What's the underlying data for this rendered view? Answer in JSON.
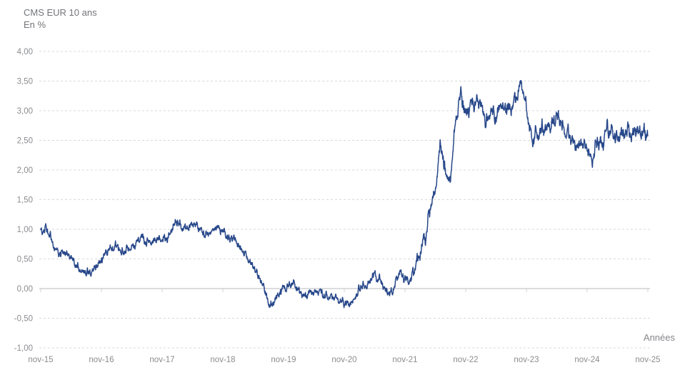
{
  "title": "CMS EUR 10 ans",
  "subtitle": "En %",
  "axis": {
    "x_label": "Années",
    "x_ticks": [
      "nov-15",
      "nov-16",
      "nov-17",
      "nov-18",
      "nov-19",
      "nov-20",
      "nov-21",
      "nov-22",
      "nov-23",
      "nov-24",
      "nov-25"
    ],
    "y_ticks": [
      {
        "label": "4,00",
        "value": 4.0
      },
      {
        "label": "3,50",
        "value": 3.5
      },
      {
        "label": "3,00",
        "value": 3.0
      },
      {
        "label": "2,50",
        "value": 2.5
      },
      {
        "label": "2,00",
        "value": 2.0
      },
      {
        "label": "1,50",
        "value": 1.5
      },
      {
        "label": "1,00",
        "value": 1.0
      },
      {
        "label": "0,50",
        "value": 0.5
      },
      {
        "label": "0,00",
        "value": 0.0
      },
      {
        "label": "-0,50",
        "value": -0.5
      },
      {
        "label": "-1,00",
        "value": -1.0
      }
    ]
  },
  "colors": {
    "line": "#28488a",
    "grid": "#d9d9db",
    "axis_line": "#cfd0d3",
    "title_text": "#737478",
    "tick_text": "#8b8c8f",
    "background": "#ffffff"
  },
  "chart_data": {
    "type": "line",
    "title": "CMS EUR 10 ans",
    "ylabel": "En %",
    "xlabel": "Années",
    "legend": "none",
    "grid": "horizontal-dashed",
    "ylim": [
      -1.0,
      4.0
    ],
    "x_tick_labels": [
      "nov-15",
      "nov-16",
      "nov-17",
      "nov-18",
      "nov-19",
      "nov-20",
      "nov-21",
      "nov-22",
      "nov-23",
      "nov-24",
      "nov-25"
    ],
    "series_name": "CMS EUR 10 ans",
    "x": [
      "2015-11",
      "2015-12",
      "2016-01",
      "2016-02",
      "2016-03",
      "2016-04",
      "2016-05",
      "2016-06",
      "2016-07",
      "2016-08",
      "2016-09",
      "2016-10",
      "2016-11",
      "2016-12",
      "2017-01",
      "2017-02",
      "2017-03",
      "2017-04",
      "2017-05",
      "2017-06",
      "2017-07",
      "2017-08",
      "2017-09",
      "2017-10",
      "2017-11",
      "2017-12",
      "2018-01",
      "2018-02",
      "2018-03",
      "2018-04",
      "2018-05",
      "2018-06",
      "2018-07",
      "2018-08",
      "2018-09",
      "2018-10",
      "2018-11",
      "2018-12",
      "2019-01",
      "2019-02",
      "2019-03",
      "2019-04",
      "2019-05",
      "2019-06",
      "2019-07",
      "2019-08",
      "2019-09",
      "2019-10",
      "2019-11",
      "2019-12",
      "2020-01",
      "2020-02",
      "2020-03",
      "2020-04",
      "2020-05",
      "2020-06",
      "2020-07",
      "2020-08",
      "2020-09",
      "2020-10",
      "2020-11",
      "2020-12",
      "2021-01",
      "2021-02",
      "2021-03",
      "2021-04",
      "2021-05",
      "2021-06",
      "2021-07",
      "2021-08",
      "2021-09",
      "2021-10",
      "2021-11",
      "2021-12",
      "2022-01",
      "2022-02",
      "2022-03",
      "2022-04",
      "2022-05",
      "2022-06",
      "2022-07",
      "2022-08",
      "2022-09",
      "2022-10",
      "2022-11",
      "2022-12",
      "2023-01",
      "2023-02",
      "2023-03",
      "2023-04",
      "2023-05",
      "2023-06",
      "2023-07",
      "2023-08",
      "2023-09",
      "2023-10",
      "2023-11",
      "2023-12",
      "2024-01",
      "2024-02",
      "2024-03",
      "2024-04",
      "2024-05",
      "2024-06",
      "2024-07",
      "2024-08",
      "2024-09",
      "2024-10",
      "2024-11",
      "2024-12",
      "2025-01",
      "2025-02",
      "2025-03",
      "2025-04",
      "2025-05",
      "2025-06",
      "2025-07",
      "2025-08",
      "2025-09",
      "2025-10",
      "2025-11"
    ],
    "values": [
      0.97,
      1.0,
      0.86,
      0.62,
      0.58,
      0.6,
      0.53,
      0.4,
      0.29,
      0.27,
      0.28,
      0.35,
      0.48,
      0.62,
      0.68,
      0.72,
      0.62,
      0.66,
      0.68,
      0.76,
      0.88,
      0.8,
      0.78,
      0.85,
      0.8,
      0.86,
      1.06,
      1.15,
      1.02,
      1.06,
      1.1,
      1.04,
      0.98,
      0.93,
      1.0,
      1.04,
      0.97,
      0.85,
      0.82,
      0.75,
      0.62,
      0.46,
      0.38,
      0.2,
      0.06,
      -0.27,
      -0.24,
      -0.1,
      0.0,
      0.05,
      0.14,
      -0.05,
      -0.14,
      -0.06,
      -0.09,
      -0.04,
      -0.12,
      -0.15,
      -0.18,
      -0.22,
      -0.24,
      -0.26,
      -0.18,
      0.0,
      0.06,
      0.1,
      0.25,
      0.15,
      0.0,
      -0.1,
      0.05,
      0.25,
      0.16,
      0.1,
      0.4,
      0.62,
      0.86,
      1.35,
      1.62,
      2.45,
      1.95,
      1.8,
      2.85,
      3.3,
      2.85,
      3.1,
      3.15,
      3.2,
      2.75,
      3.0,
      2.9,
      3.05,
      3.05,
      2.98,
      3.25,
      3.52,
      3.0,
      2.48,
      2.58,
      2.7,
      2.68,
      2.8,
      2.88,
      2.78,
      2.66,
      2.5,
      2.42,
      2.45,
      2.34,
      2.13,
      2.5,
      2.38,
      2.74,
      2.58,
      2.5,
      2.62,
      2.66,
      2.62,
      2.7,
      2.62,
      2.66
    ]
  }
}
